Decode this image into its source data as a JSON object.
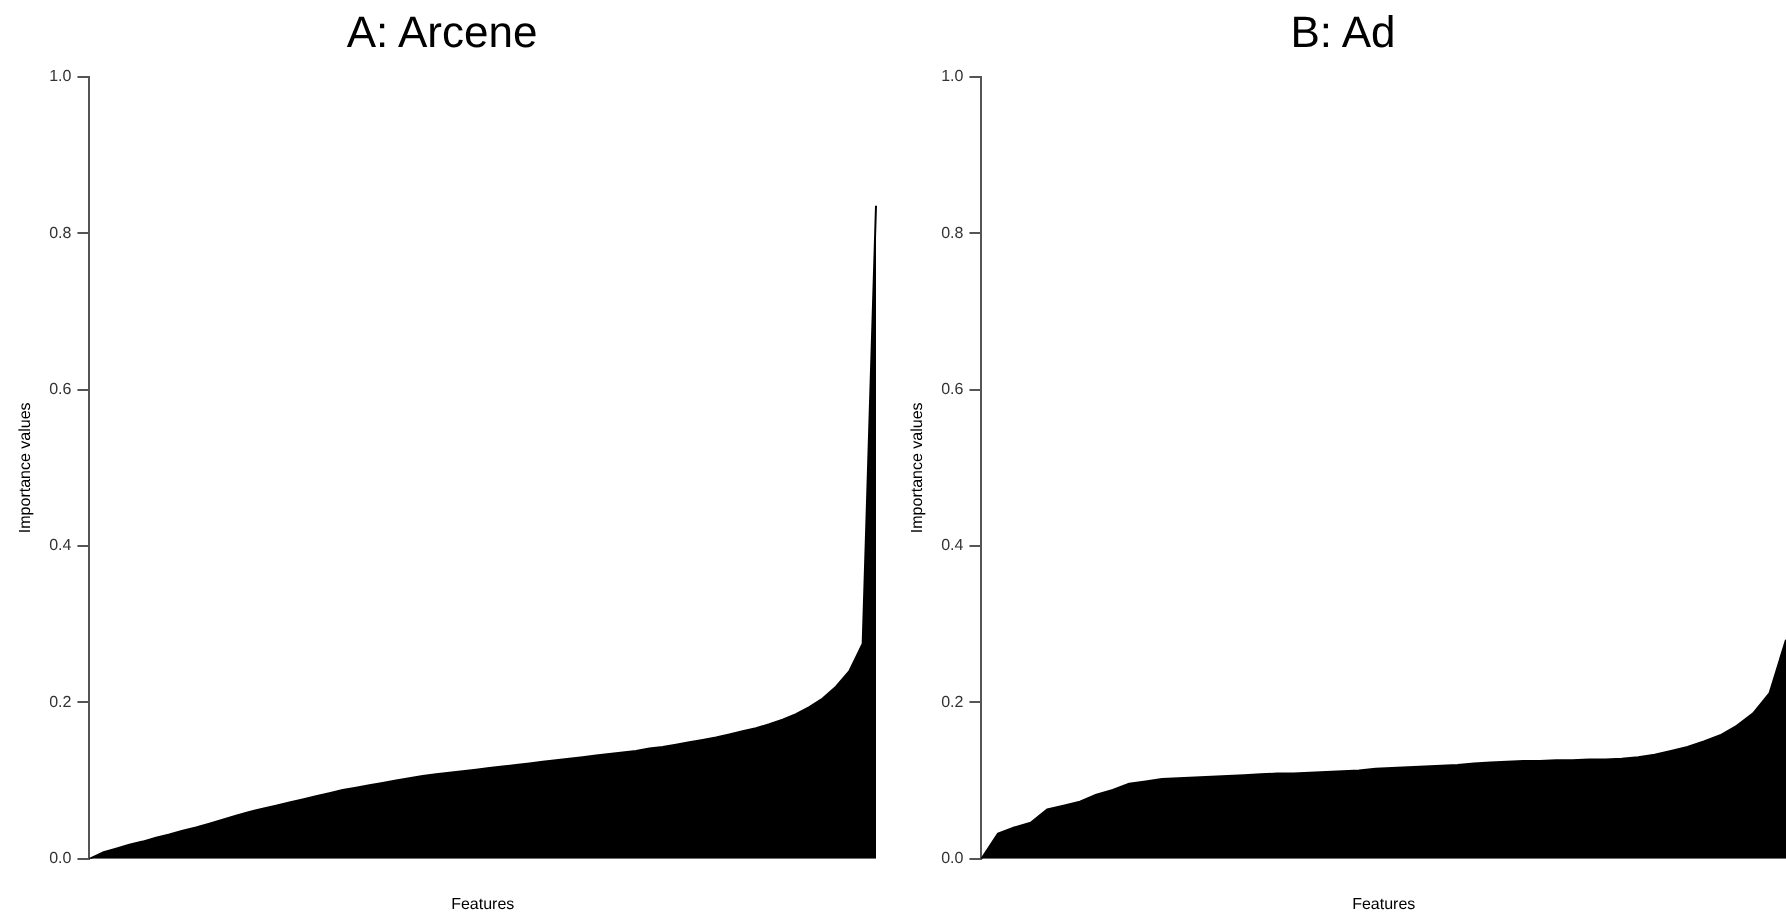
{
  "chart_data": [
    {
      "type": "area",
      "title": "A: Arcene",
      "xlabel": "Features",
      "ylabel": "Importance values",
      "color": "#000000",
      "categories": [
        null,
        null,
        null,
        null,
        null,
        null,
        null,
        null,
        null,
        null,
        null,
        null,
        null,
        null,
        null,
        null,
        null,
        null,
        null,
        null,
        null,
        null,
        null,
        null,
        null,
        null,
        null,
        null,
        null,
        null,
        null,
        null,
        null,
        null,
        null,
        null,
        null,
        null,
        null,
        null,
        null,
        null,
        null,
        null,
        null,
        null,
        null,
        null,
        null,
        null,
        null,
        null,
        null,
        null,
        null,
        null,
        null,
        null,
        null,
        null
      ],
      "values": [
        0.0,
        0.008,
        0.013,
        0.018,
        0.022,
        0.027,
        0.031,
        0.036,
        0.04,
        0.045,
        0.05,
        0.055,
        0.06,
        0.064,
        0.068,
        0.072,
        0.076,
        0.08,
        0.084,
        0.088,
        0.091,
        0.094,
        0.097,
        0.1,
        0.103,
        0.106,
        0.108,
        0.11,
        0.112,
        0.114,
        0.116,
        0.118,
        0.12,
        0.122,
        0.124,
        0.126,
        0.128,
        0.13,
        0.132,
        0.134,
        0.136,
        0.138,
        0.141,
        0.143,
        0.146,
        0.149,
        0.152,
        0.155,
        0.159,
        0.163,
        0.167,
        0.172,
        0.178,
        0.185,
        0.194,
        0.205,
        0.22,
        0.24,
        0.275,
        0.835
      ],
      "ylim": [
        0,
        1
      ],
      "yticks": [
        {
          "value": 0,
          "label": "0.0"
        },
        {
          "value": 0.2,
          "label": "0.2"
        },
        {
          "value": 0.4,
          "label": "0.4"
        },
        {
          "value": 0.6,
          "label": "0.6"
        },
        {
          "value": 0.8,
          "label": "0.8"
        },
        {
          "value": 1,
          "label": "1.0"
        }
      ],
      "grid": false,
      "legend": false,
      "tick_labels": "y"
    },
    {
      "type": "area",
      "title": "B: Ad",
      "xlabel": "Features",
      "ylabel": "Importance values",
      "color": "#000000",
      "categories": [
        null,
        null,
        null,
        null,
        null,
        null,
        null,
        null,
        null,
        null,
        null,
        null,
        null,
        null,
        null,
        null,
        null,
        null,
        null,
        null,
        null,
        null,
        null,
        null,
        null,
        null,
        null,
        null,
        null,
        null,
        null,
        null,
        null,
        null,
        null,
        null,
        null,
        null,
        null,
        null,
        null,
        null,
        null,
        null,
        null,
        null,
        null,
        null,
        null,
        null
      ],
      "values": [
        0.0,
        0.032,
        0.04,
        0.046,
        0.063,
        0.068,
        0.073,
        0.082,
        0.088,
        0.096,
        0.099,
        0.102,
        0.103,
        0.104,
        0.105,
        0.106,
        0.107,
        0.108,
        0.109,
        0.109,
        0.11,
        0.111,
        0.112,
        0.113,
        0.115,
        0.116,
        0.117,
        0.118,
        0.119,
        0.12,
        0.122,
        0.123,
        0.124,
        0.125,
        0.125,
        0.126,
        0.126,
        0.127,
        0.127,
        0.128,
        0.13,
        0.133,
        0.138,
        0.143,
        0.15,
        0.158,
        0.17,
        0.186,
        0.212,
        0.28
      ],
      "ylim": [
        0,
        1
      ],
      "yticks": [
        {
          "value": 0,
          "label": "0.0"
        },
        {
          "value": 0.2,
          "label": "0.2"
        },
        {
          "value": 0.4,
          "label": "0.4"
        },
        {
          "value": 0.6,
          "label": "0.6"
        },
        {
          "value": 0.8,
          "label": "0.8"
        },
        {
          "value": 1,
          "label": "1.0"
        }
      ],
      "grid": false,
      "legend": false,
      "tick_labels": "y"
    }
  ]
}
